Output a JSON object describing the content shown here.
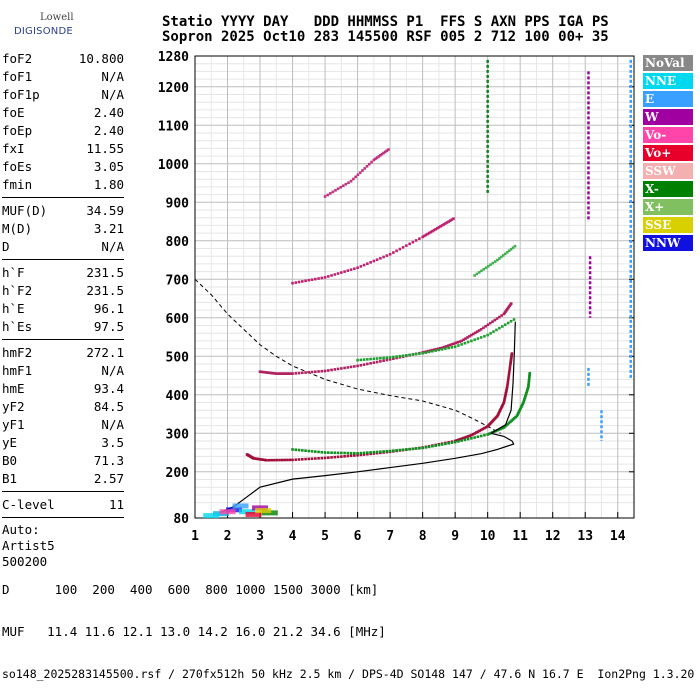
{
  "logo": {
    "line1": "Lowell",
    "line2": "DIGISONDE"
  },
  "header": {
    "line1": "Statio YYYY DAY   DDD HHMMSS P1  FFS S AXN PPS IGA PS",
    "line2": "Sopron 2025 Oct10 283 145500 RSF 005 2 712 100 00+ 35"
  },
  "params": {
    "group1": [
      {
        "k": "foF2",
        "v": "10.800"
      },
      {
        "k": "foF1",
        "v": "N/A"
      },
      {
        "k": "foF1p",
        "v": "N/A"
      },
      {
        "k": "foE",
        "v": "2.40"
      },
      {
        "k": "foEp",
        "v": "2.40"
      },
      {
        "k": "fxI",
        "v": "11.55"
      },
      {
        "k": "foEs",
        "v": "3.05"
      },
      {
        "k": "fmin",
        "v": "1.80"
      }
    ],
    "group2": [
      {
        "k": "MUF(D)",
        "v": "34.59"
      },
      {
        "k": "M(D)",
        "v": "3.21"
      },
      {
        "k": "D",
        "v": "N/A"
      }
    ],
    "group3": [
      {
        "k": "h`F",
        "v": "231.5"
      },
      {
        "k": "h`F2",
        "v": "231.5"
      },
      {
        "k": "h`E",
        "v": "96.1"
      },
      {
        "k": "h`Es",
        "v": "97.5"
      }
    ],
    "group4": [
      {
        "k": "hmF2",
        "v": "272.1"
      },
      {
        "k": "hmF1",
        "v": "N/A"
      },
      {
        "k": "hmE",
        "v": "93.4"
      },
      {
        "k": "yF2",
        "v": "84.5"
      },
      {
        "k": "yF1",
        "v": "N/A"
      },
      {
        "k": "yE",
        "v": "3.5"
      },
      {
        "k": "B0",
        "v": "71.3"
      },
      {
        "k": "B1",
        "v": "2.57"
      }
    ],
    "group5": [
      {
        "k": "C-level",
        "v": "11"
      }
    ],
    "auto": [
      "Auto:",
      "Artist5",
      "500200"
    ]
  },
  "legend": [
    {
      "label": "NoVal",
      "color": "#888888"
    },
    {
      "label": "NNE",
      "color": "#00d8f0"
    },
    {
      "label": "E",
      "color": "#3aa0ff"
    },
    {
      "label": "W",
      "color": "#a000a0"
    },
    {
      "label": "Vo-",
      "color": "#ff44aa"
    },
    {
      "label": "Vo+",
      "color": "#e8002a"
    },
    {
      "label": "SSW",
      "color": "#f4b0b0"
    },
    {
      "label": "X-",
      "color": "#008000"
    },
    {
      "label": "X+",
      "color": "#80c060"
    },
    {
      "label": "SSE",
      "color": "#d8d000"
    },
    {
      "label": "NNW",
      "color": "#1010e0"
    }
  ],
  "footer": {
    "line1": "D      100  200  400  600  800 1000 1500 3000 [km]",
    "line2": "MUF   11.4 11.6 12.1 13.0 14.2 16.0 21.2 34.6 [MHz]",
    "line3": "so148_2025283145500.rsf / 270fx512h 50 kHz 2.5 km / DPS-4D SO148 147 / 47.6 N 16.7 E  Ion2Png 1.3.20"
  },
  "chart_data": {
    "type": "scatter",
    "xlabel": "",
    "ylabel": "",
    "xlim": [
      1,
      14.5
    ],
    "ylim": [
      80,
      1280
    ],
    "x_ticks": [
      1,
      2,
      3,
      4,
      5,
      6,
      7,
      8,
      9,
      10,
      11,
      12,
      13,
      14
    ],
    "y_ticks": [
      80,
      200,
      300,
      400,
      500,
      600,
      700,
      800,
      900,
      1000,
      1100,
      1200,
      1280
    ],
    "grid": true,
    "legend_position": "right",
    "series": [
      {
        "name": "Vo+",
        "color": "#a0103a",
        "points": [
          [
            2.6,
            245
          ],
          [
            2.8,
            235
          ],
          [
            3.2,
            230
          ],
          [
            4,
            231
          ],
          [
            5,
            236
          ],
          [
            6,
            243
          ],
          [
            7,
            252
          ],
          [
            8,
            263
          ],
          [
            9,
            280
          ],
          [
            9.5,
            295
          ],
          [
            10,
            318
          ],
          [
            10.3,
            345
          ],
          [
            10.5,
            380
          ],
          [
            10.6,
            420
          ],
          [
            10.7,
            480
          ],
          [
            10.75,
            510
          ]
        ]
      },
      {
        "name": "X-",
        "color": "#109020",
        "points": [
          [
            4.0,
            258
          ],
          [
            5,
            250
          ],
          [
            6,
            248
          ],
          [
            7,
            254
          ],
          [
            8,
            262
          ],
          [
            9,
            277
          ],
          [
            10,
            297
          ],
          [
            10.5,
            315
          ],
          [
            10.9,
            345
          ],
          [
            11.1,
            380
          ],
          [
            11.25,
            420
          ],
          [
            11.3,
            460
          ]
        ]
      },
      {
        "name": "Vo+",
        "color": "#b02060",
        "points": [
          [
            3,
            460
          ],
          [
            3.5,
            455
          ],
          [
            4,
            455
          ],
          [
            5,
            462
          ],
          [
            6,
            475
          ],
          [
            7,
            492
          ],
          [
            8,
            510
          ],
          [
            8.6,
            522
          ],
          [
            9.2,
            540
          ],
          [
            9.8,
            570
          ],
          [
            10.5,
            610
          ],
          [
            10.75,
            640
          ]
        ]
      },
      {
        "name": "X-",
        "color": "#20a030",
        "points": [
          [
            6,
            490
          ],
          [
            7,
            497
          ],
          [
            8,
            508
          ],
          [
            9,
            525
          ],
          [
            10,
            555
          ],
          [
            10.9,
            600
          ]
        ]
      },
      {
        "name": "Vo+",
        "color": "#c02070",
        "points": [
          [
            4,
            690
          ],
          [
            5,
            705
          ],
          [
            6,
            730
          ],
          [
            7,
            765
          ],
          [
            8,
            810
          ],
          [
            8.5,
            835
          ],
          [
            9,
            860
          ]
        ]
      },
      {
        "name": "X-",
        "color": "#40b050",
        "points": [
          [
            9.6,
            710
          ],
          [
            10.3,
            750
          ],
          [
            10.9,
            790
          ]
        ]
      },
      {
        "name": "Vo+",
        "color": "#c03080",
        "points": [
          [
            5,
            915
          ],
          [
            5.8,
            955
          ],
          [
            6.5,
            1010
          ],
          [
            7,
            1040
          ]
        ]
      }
    ],
    "profile": [
      [
        1.8,
        95
      ],
      [
        2.2,
        110
      ],
      [
        2.6,
        135
      ],
      [
        3,
        160
      ],
      [
        4,
        181
      ],
      [
        5,
        190
      ],
      [
        6,
        200
      ],
      [
        7,
        211
      ],
      [
        8,
        222
      ],
      [
        9,
        235
      ],
      [
        9.8,
        247
      ],
      [
        10.3,
        258
      ],
      [
        10.65,
        268
      ],
      [
        10.8,
        272.1
      ],
      [
        10.75,
        280
      ],
      [
        10.5,
        292
      ],
      [
        10.1,
        300
      ]
    ],
    "muf_curve": [
      [
        1,
        700
      ],
      [
        1.5,
        660
      ],
      [
        2,
        610
      ],
      [
        2.5,
        570
      ],
      [
        3,
        530
      ],
      [
        3.5,
        500
      ],
      [
        4,
        475
      ],
      [
        5,
        440
      ],
      [
        6,
        415
      ],
      [
        7,
        398
      ],
      [
        8,
        384
      ],
      [
        9,
        360
      ],
      [
        9.5,
        340
      ],
      [
        10,
        318
      ],
      [
        10.4,
        300
      ]
    ]
  }
}
